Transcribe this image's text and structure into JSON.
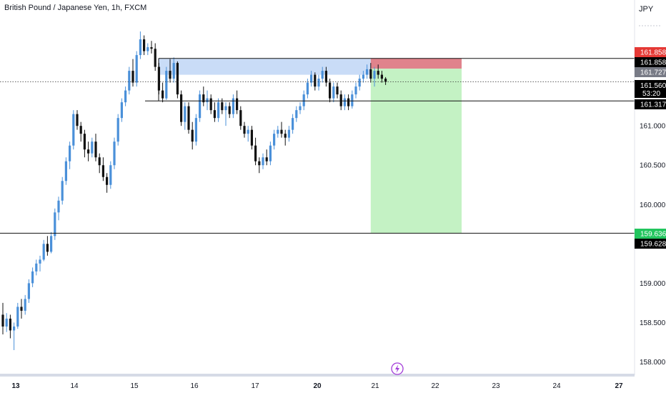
{
  "header": {
    "title": "British Pound / Japanese Yen, 1h, FXCM",
    "currency": "JPY"
  },
  "chart_data": {
    "type": "candlestick",
    "title": "British Pound / Japanese Yen, 1h, FXCM",
    "ylim": [
      157.85,
      162.6
    ],
    "y_ticks": [
      161.0,
      160.5,
      160.0,
      159.0,
      158.5,
      158.0
    ],
    "y_tick_labels": [
      "161.000",
      "160.500",
      "160.000",
      "159.000",
      "158.500",
      "158.000"
    ],
    "x_ticks": [
      {
        "label": "13",
        "bold": true
      },
      {
        "label": "14",
        "bold": false
      },
      {
        "label": "15",
        "bold": false
      },
      {
        "label": "16",
        "bold": false
      },
      {
        "label": "17",
        "bold": false
      },
      {
        "label": "20",
        "bold": true
      },
      {
        "label": "21",
        "bold": false
      },
      {
        "label": "22",
        "bold": false
      },
      {
        "label": "23",
        "bold": false
      },
      {
        "label": "24",
        "bold": false
      },
      {
        "label": "27",
        "bold": true
      }
    ],
    "colors": {
      "up": "#4a90d9",
      "down": "#111111",
      "current_box": "#000000"
    },
    "horizontal_lines": [
      161.858,
      161.317,
      159.636
    ],
    "current_price": {
      "value": 161.56,
      "label": "161.560",
      "countdown": "53:20"
    },
    "price_labels": [
      {
        "label": "161.858",
        "value": 161.858,
        "bg": "#e53935",
        "fg": "#ffffff"
      },
      {
        "label": "161.858",
        "value": 161.858,
        "bg": "#000000",
        "fg": "#ffffff"
      },
      {
        "label": "161.727",
        "value": 161.727,
        "bg": "#787b86",
        "fg": "#ffffff"
      },
      {
        "label": "161.317",
        "value": 161.317,
        "bg": "#000000",
        "fg": "#ffffff"
      },
      {
        "label": "159.636",
        "value": 159.636,
        "bg": "#22c55e",
        "fg": "#ffffff"
      },
      {
        "label": "159.628",
        "value": 159.628,
        "bg": "#000000",
        "fg": "#ffffff"
      }
    ],
    "zones": [
      {
        "name": "resistance-zone",
        "from": 161.858,
        "to": 161.65,
        "color": "#c9dcf7"
      },
      {
        "name": "stop-loss-zone",
        "from": 161.858,
        "to": 161.727,
        "color": "#e0838c"
      },
      {
        "name": "take-profit-zone",
        "from": 161.727,
        "to": 159.636,
        "color": "#c4f2c4"
      }
    ],
    "candles": [
      {
        "o": 158.6,
        "h": 158.75,
        "l": 158.35,
        "c": 158.45
      },
      {
        "o": 158.45,
        "h": 158.62,
        "l": 158.38,
        "c": 158.55
      },
      {
        "o": 158.55,
        "h": 158.6,
        "l": 158.3,
        "c": 158.4
      },
      {
        "o": 158.4,
        "h": 158.5,
        "l": 158.15,
        "c": 158.45
      },
      {
        "o": 158.45,
        "h": 158.75,
        "l": 158.42,
        "c": 158.7
      },
      {
        "o": 158.7,
        "h": 158.8,
        "l": 158.55,
        "c": 158.65
      },
      {
        "o": 158.65,
        "h": 158.85,
        "l": 158.6,
        "c": 158.8
      },
      {
        "o": 158.8,
        "h": 159.05,
        "l": 158.75,
        "c": 159.0
      },
      {
        "o": 159.0,
        "h": 159.2,
        "l": 158.95,
        "c": 159.15
      },
      {
        "o": 159.15,
        "h": 159.3,
        "l": 159.1,
        "c": 159.25
      },
      {
        "o": 159.25,
        "h": 159.35,
        "l": 159.15,
        "c": 159.3
      },
      {
        "o": 159.3,
        "h": 159.55,
        "l": 159.28,
        "c": 159.5
      },
      {
        "o": 159.5,
        "h": 159.6,
        "l": 159.35,
        "c": 159.4
      },
      {
        "o": 159.4,
        "h": 159.65,
        "l": 159.38,
        "c": 159.6
      },
      {
        "o": 159.6,
        "h": 159.95,
        "l": 159.55,
        "c": 159.9
      },
      {
        "o": 159.9,
        "h": 160.1,
        "l": 159.8,
        "c": 160.05
      },
      {
        "o": 160.05,
        "h": 160.35,
        "l": 160.0,
        "c": 160.3
      },
      {
        "o": 160.3,
        "h": 160.6,
        "l": 160.25,
        "c": 160.55
      },
      {
        "o": 160.55,
        "h": 160.8,
        "l": 160.45,
        "c": 160.75
      },
      {
        "o": 160.75,
        "h": 161.2,
        "l": 160.7,
        "c": 161.15
      },
      {
        "o": 161.15,
        "h": 161.2,
        "l": 160.95,
        "c": 161.0
      },
      {
        "o": 161.0,
        "h": 161.05,
        "l": 160.8,
        "c": 160.9
      },
      {
        "o": 160.9,
        "h": 160.95,
        "l": 160.6,
        "c": 160.7
      },
      {
        "o": 160.7,
        "h": 160.8,
        "l": 160.55,
        "c": 160.65
      },
      {
        "o": 160.65,
        "h": 160.85,
        "l": 160.6,
        "c": 160.8
      },
      {
        "o": 160.8,
        "h": 160.9,
        "l": 160.55,
        "c": 160.6
      },
      {
        "o": 160.6,
        "h": 160.65,
        "l": 160.4,
        "c": 160.5
      },
      {
        "o": 160.5,
        "h": 160.6,
        "l": 160.3,
        "c": 160.35
      },
      {
        "o": 160.35,
        "h": 160.4,
        "l": 160.15,
        "c": 160.25
      },
      {
        "o": 160.25,
        "h": 160.55,
        "l": 160.2,
        "c": 160.5
      },
      {
        "o": 160.5,
        "h": 160.85,
        "l": 160.45,
        "c": 160.8
      },
      {
        "o": 160.8,
        "h": 161.15,
        "l": 160.75,
        "c": 161.1
      },
      {
        "o": 161.1,
        "h": 161.35,
        "l": 161.05,
        "c": 161.3
      },
      {
        "o": 161.3,
        "h": 161.5,
        "l": 161.25,
        "c": 161.45
      },
      {
        "o": 161.45,
        "h": 161.75,
        "l": 161.4,
        "c": 161.7
      },
      {
        "o": 161.7,
        "h": 161.85,
        "l": 161.5,
        "c": 161.55
      },
      {
        "o": 161.55,
        "h": 161.95,
        "l": 161.5,
        "c": 161.9
      },
      {
        "o": 161.9,
        "h": 162.2,
        "l": 161.85,
        "c": 162.1
      },
      {
        "o": 162.1,
        "h": 162.15,
        "l": 161.9,
        "c": 161.95
      },
      {
        "o": 161.95,
        "h": 162.05,
        "l": 161.9,
        "c": 162.0
      },
      {
        "o": 162.0,
        "h": 162.08,
        "l": 161.92,
        "c": 161.98
      },
      {
        "o": 161.98,
        "h": 162.05,
        "l": 161.7,
        "c": 161.75
      },
      {
        "o": 161.75,
        "h": 161.8,
        "l": 161.4,
        "c": 161.45
      },
      {
        "o": 161.45,
        "h": 161.55,
        "l": 161.3,
        "c": 161.35
      },
      {
        "o": 161.35,
        "h": 161.75,
        "l": 161.33,
        "c": 161.7
      },
      {
        "o": 161.7,
        "h": 161.85,
        "l": 161.55,
        "c": 161.6
      },
      {
        "o": 161.6,
        "h": 161.87,
        "l": 161.55,
        "c": 161.8
      },
      {
        "o": 161.8,
        "h": 161.82,
        "l": 161.35,
        "c": 161.4
      },
      {
        "o": 161.4,
        "h": 161.45,
        "l": 161.0,
        "c": 161.05
      },
      {
        "o": 161.05,
        "h": 161.3,
        "l": 160.95,
        "c": 161.25
      },
      {
        "o": 161.25,
        "h": 161.3,
        "l": 160.9,
        "c": 160.95
      },
      {
        "o": 160.95,
        "h": 161.05,
        "l": 160.7,
        "c": 160.8
      },
      {
        "o": 160.8,
        "h": 161.15,
        "l": 160.75,
        "c": 161.1
      },
      {
        "o": 161.1,
        "h": 161.45,
        "l": 161.05,
        "c": 161.4
      },
      {
        "o": 161.4,
        "h": 161.5,
        "l": 161.25,
        "c": 161.3
      },
      {
        "o": 161.3,
        "h": 161.45,
        "l": 161.2,
        "c": 161.35
      },
      {
        "o": 161.35,
        "h": 161.4,
        "l": 161.15,
        "c": 161.2
      },
      {
        "o": 161.2,
        "h": 161.3,
        "l": 161.05,
        "c": 161.1
      },
      {
        "o": 161.1,
        "h": 161.35,
        "l": 161.05,
        "c": 161.3
      },
      {
        "o": 161.3,
        "h": 161.35,
        "l": 161.15,
        "c": 161.2
      },
      {
        "o": 161.2,
        "h": 161.3,
        "l": 161.0,
        "c": 161.25
      },
      {
        "o": 161.25,
        "h": 161.3,
        "l": 161.1,
        "c": 161.15
      },
      {
        "o": 161.15,
        "h": 161.4,
        "l": 161.1,
        "c": 161.35
      },
      {
        "o": 161.35,
        "h": 161.45,
        "l": 161.15,
        "c": 161.2
      },
      {
        "o": 161.2,
        "h": 161.25,
        "l": 160.95,
        "c": 161.0
      },
      {
        "o": 161.0,
        "h": 161.05,
        "l": 160.85,
        "c": 160.9
      },
      {
        "o": 160.9,
        "h": 161.0,
        "l": 160.8,
        "c": 160.95
      },
      {
        "o": 160.95,
        "h": 161.0,
        "l": 160.7,
        "c": 160.75
      },
      {
        "o": 160.75,
        "h": 160.85,
        "l": 160.5,
        "c": 160.55
      },
      {
        "o": 160.55,
        "h": 160.6,
        "l": 160.4,
        "c": 160.5
      },
      {
        "o": 160.5,
        "h": 160.65,
        "l": 160.45,
        "c": 160.6
      },
      {
        "o": 160.6,
        "h": 160.7,
        "l": 160.5,
        "c": 160.55
      },
      {
        "o": 160.55,
        "h": 160.8,
        "l": 160.5,
        "c": 160.75
      },
      {
        "o": 160.75,
        "h": 160.95,
        "l": 160.7,
        "c": 160.9
      },
      {
        "o": 160.9,
        "h": 161.0,
        "l": 160.85,
        "c": 160.95
      },
      {
        "o": 160.95,
        "h": 161.05,
        "l": 160.85,
        "c": 160.9
      },
      {
        "o": 160.9,
        "h": 160.95,
        "l": 160.75,
        "c": 160.85
      },
      {
        "o": 160.85,
        "h": 161.0,
        "l": 160.8,
        "c": 160.95
      },
      {
        "o": 160.95,
        "h": 161.15,
        "l": 160.9,
        "c": 161.1
      },
      {
        "o": 161.1,
        "h": 161.25,
        "l": 161.05,
        "c": 161.2
      },
      {
        "o": 161.2,
        "h": 161.3,
        "l": 161.15,
        "c": 161.25
      },
      {
        "o": 161.25,
        "h": 161.45,
        "l": 161.2,
        "c": 161.4
      },
      {
        "o": 161.4,
        "h": 161.6,
        "l": 161.35,
        "c": 161.55
      },
      {
        "o": 161.55,
        "h": 161.7,
        "l": 161.5,
        "c": 161.65
      },
      {
        "o": 161.65,
        "h": 161.68,
        "l": 161.45,
        "c": 161.5
      },
      {
        "o": 161.5,
        "h": 161.65,
        "l": 161.45,
        "c": 161.6
      },
      {
        "o": 161.6,
        "h": 161.75,
        "l": 161.55,
        "c": 161.7
      },
      {
        "o": 161.7,
        "h": 161.75,
        "l": 161.5,
        "c": 161.55
      },
      {
        "o": 161.55,
        "h": 161.6,
        "l": 161.3,
        "c": 161.35
      },
      {
        "o": 161.35,
        "h": 161.55,
        "l": 161.3,
        "c": 161.5
      },
      {
        "o": 161.5,
        "h": 161.55,
        "l": 161.35,
        "c": 161.4
      },
      {
        "o": 161.4,
        "h": 161.45,
        "l": 161.2,
        "c": 161.25
      },
      {
        "o": 161.25,
        "h": 161.4,
        "l": 161.2,
        "c": 161.35
      },
      {
        "o": 161.35,
        "h": 161.4,
        "l": 161.2,
        "c": 161.25
      },
      {
        "o": 161.25,
        "h": 161.45,
        "l": 161.22,
        "c": 161.4
      },
      {
        "o": 161.4,
        "h": 161.55,
        "l": 161.35,
        "c": 161.5
      },
      {
        "o": 161.5,
        "h": 161.65,
        "l": 161.45,
        "c": 161.6
      },
      {
        "o": 161.6,
        "h": 161.7,
        "l": 161.55,
        "c": 161.65
      },
      {
        "o": 161.65,
        "h": 161.78,
        "l": 161.6,
        "c": 161.72
      },
      {
        "o": 161.72,
        "h": 161.8,
        "l": 161.55,
        "c": 161.6
      },
      {
        "o": 161.6,
        "h": 161.75,
        "l": 161.5,
        "c": 161.7
      },
      {
        "o": 161.7,
        "h": 161.78,
        "l": 161.6,
        "c": 161.65
      },
      {
        "o": 161.65,
        "h": 161.7,
        "l": 161.55,
        "c": 161.6
      },
      {
        "o": 161.6,
        "h": 161.62,
        "l": 161.52,
        "c": 161.56
      }
    ]
  }
}
